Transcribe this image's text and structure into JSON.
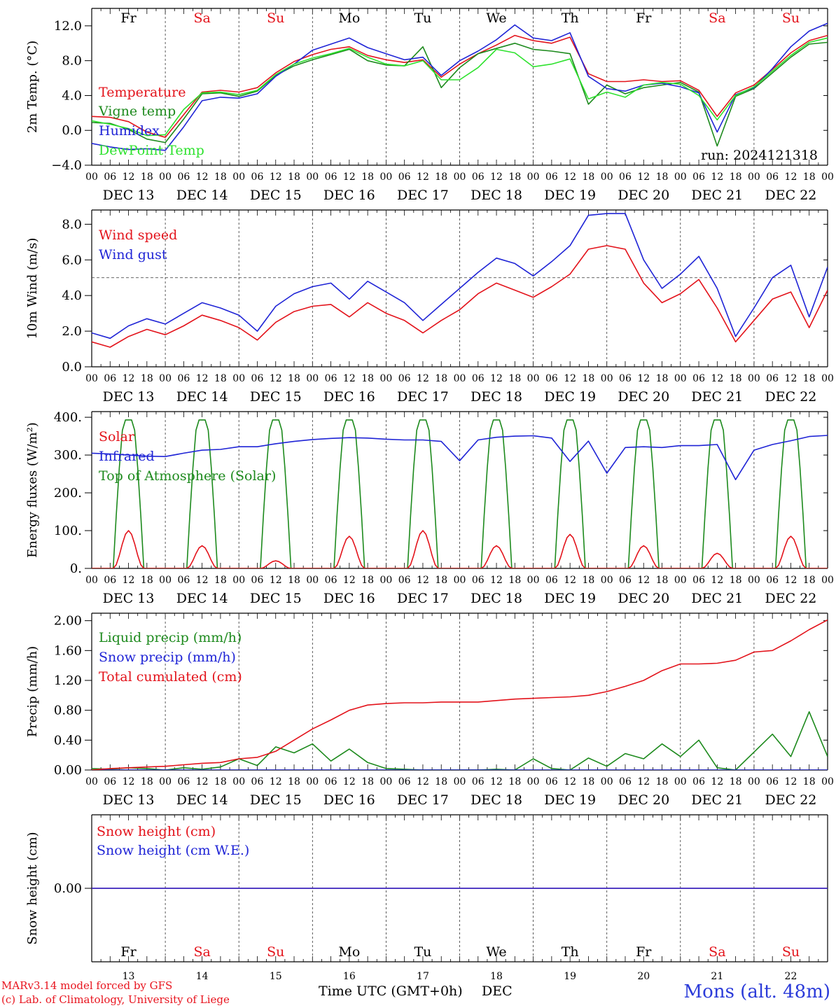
{
  "colors": {
    "red": "#e3131b",
    "blue": "#1f24d6",
    "green": "#1d8a1d",
    "lightgreen": "#2ee22e",
    "axis": "#000000"
  },
  "days": {
    "names": [
      "Fr",
      "Sa",
      "Su",
      "Mo",
      "Tu",
      "We",
      "Th",
      "Fr",
      "Sa",
      "Su"
    ],
    "weekend": [
      false,
      true,
      true,
      false,
      false,
      false,
      false,
      false,
      true,
      true
    ],
    "dates": [
      "DEC 13",
      "DEC 14",
      "DEC 15",
      "DEC 16",
      "DEC 17",
      "DEC 18",
      "DEC 19",
      "DEC 20",
      "DEC 21",
      "DEC 22"
    ],
    "numbers": [
      "13",
      "14",
      "15",
      "16",
      "17",
      "18",
      "19",
      "20",
      "21",
      "22"
    ],
    "hour_labels": [
      "00",
      "06",
      "12",
      "18"
    ],
    "last_hour_label": "00"
  },
  "footer": {
    "model": "MARv3.14 model forced by GFS",
    "credit": "(c) Lab. of Climatology, University of Liege",
    "xlabel": "Time UTC (GMT+0h)",
    "month": "DEC",
    "station": "Mons (alt. 48m)"
  },
  "chart_data": [
    {
      "type": "line",
      "ylabel": "2m Temp. (°C)",
      "ylim": [
        -4,
        14
      ],
      "yticks": [
        "12.0",
        "8.0",
        "4.0",
        "0.0",
        "−4.0"
      ],
      "ytick_values": [
        12,
        8,
        4,
        0,
        -4
      ],
      "annotation": "run: 2024121318",
      "x_unit": "hours from DEC 13 00 UTC",
      "series": [
        {
          "name": "Temperature",
          "color": "red",
          "x": [
            0,
            6,
            12,
            18,
            24,
            30,
            36,
            42,
            48,
            54,
            60,
            66,
            72,
            78,
            84,
            90,
            96,
            102,
            108,
            114,
            120,
            126,
            132,
            138,
            144,
            150,
            156,
            162,
            168,
            174,
            180,
            186,
            192,
            198,
            204,
            210,
            216,
            222,
            228,
            234,
            240
          ],
          "y": [
            1.6,
            1.5,
            1.0,
            -0.2,
            -0.8,
            1.8,
            4.4,
            4.6,
            4.4,
            4.9,
            6.6,
            7.9,
            8.7,
            9.3,
            9.6,
            8.6,
            8.1,
            7.8,
            8.1,
            6.1,
            7.6,
            8.8,
            9.8,
            10.9,
            10.3,
            10.0,
            10.7,
            6.5,
            5.6,
            5.6,
            5.8,
            5.6,
            5.7,
            4.6,
            1.6,
            4.3,
            5.2,
            7.0,
            8.9,
            10.3,
            10.9
          ]
        },
        {
          "name": "Vigne temp",
          "color": "green",
          "x": [
            0,
            6,
            12,
            18,
            24,
            30,
            36,
            42,
            48,
            54,
            60,
            66,
            72,
            78,
            84,
            90,
            96,
            102,
            108,
            114,
            120,
            126,
            132,
            138,
            144,
            150,
            156,
            162,
            168,
            174,
            180,
            186,
            192,
            198,
            204,
            210,
            216,
            222,
            228,
            234,
            240
          ],
          "y": [
            0.9,
            0.8,
            0.1,
            -1.0,
            -1.4,
            1.3,
            4.2,
            4.3,
            3.9,
            4.5,
            6.3,
            7.4,
            8.1,
            8.7,
            9.3,
            8.0,
            7.5,
            7.4,
            9.6,
            4.9,
            7.2,
            8.8,
            9.4,
            10.0,
            9.3,
            9.1,
            8.8,
            3.0,
            5.2,
            4.2,
            4.9,
            5.2,
            5.5,
            4.4,
            -1.8,
            3.9,
            4.8,
            6.6,
            8.4,
            9.9,
            10.1
          ]
        },
        {
          "name": "Humidex",
          "color": "blue",
          "x": [
            0,
            6,
            12,
            18,
            24,
            30,
            36,
            42,
            48,
            54,
            60,
            66,
            72,
            78,
            84,
            90,
            96,
            102,
            108,
            114,
            120,
            126,
            132,
            138,
            144,
            150,
            156,
            162,
            168,
            174,
            180,
            186,
            192,
            198,
            204,
            210,
            216,
            222,
            228,
            234,
            240
          ],
          "y": [
            -1.5,
            -1.9,
            -2.2,
            -2.1,
            -2.3,
            0.4,
            3.4,
            3.8,
            3.7,
            4.2,
            6.2,
            7.6,
            9.2,
            9.9,
            10.6,
            9.5,
            8.8,
            8.1,
            8.4,
            6.3,
            8.0,
            9.1,
            10.4,
            12.1,
            10.6,
            10.3,
            11.2,
            6.2,
            4.8,
            4.5,
            5.2,
            5.4,
            5.0,
            4.3,
            -0.2,
            4.1,
            4.9,
            7.1,
            9.6,
            11.4,
            12.3
          ]
        },
        {
          "name": "DewPoint Temp",
          "color": "lightgreen",
          "x": [
            0,
            6,
            12,
            18,
            24,
            30,
            36,
            42,
            48,
            54,
            60,
            66,
            72,
            78,
            84,
            90,
            96,
            102,
            108,
            114,
            120,
            126,
            132,
            138,
            144,
            150,
            156,
            162,
            168,
            174,
            180,
            186,
            192,
            198,
            204,
            210,
            216,
            222,
            228,
            234,
            240
          ],
          "y": [
            1.1,
            0.7,
            0.2,
            -0.6,
            -0.5,
            2.4,
            4.3,
            4.4,
            4.1,
            4.6,
            6.4,
            7.6,
            8.3,
            8.8,
            9.4,
            8.4,
            7.6,
            7.4,
            8.0,
            5.8,
            5.8,
            7.2,
            9.3,
            8.9,
            7.3,
            7.6,
            8.2,
            3.6,
            4.4,
            3.8,
            5.2,
            5.5,
            5.3,
            4.0,
            1.2,
            4.0,
            5.0,
            6.8,
            8.6,
            10.1,
            10.6
          ]
        }
      ]
    },
    {
      "type": "line",
      "ylabel": "10m Wind (m/s)",
      "ylim": [
        0,
        8.8
      ],
      "yticks": [
        "8.0",
        "6.0",
        "4.0",
        "2.0",
        "0.0"
      ],
      "ytick_values": [
        8,
        6,
        4,
        2,
        0
      ],
      "reference_line": 5,
      "x_unit": "hours from DEC 13 00 UTC",
      "series": [
        {
          "name": "Wind speed",
          "color": "red",
          "x": [
            0,
            6,
            12,
            18,
            24,
            30,
            36,
            42,
            48,
            54,
            60,
            66,
            72,
            78,
            84,
            90,
            96,
            102,
            108,
            114,
            120,
            126,
            132,
            138,
            144,
            150,
            156,
            162,
            168,
            174,
            180,
            186,
            192,
            198,
            204,
            210,
            216,
            222,
            228,
            234,
            240
          ],
          "y": [
            1.4,
            1.1,
            1.7,
            2.1,
            1.8,
            2.3,
            2.9,
            2.6,
            2.2,
            1.5,
            2.5,
            3.1,
            3.4,
            3.5,
            2.8,
            3.6,
            3.0,
            2.6,
            1.9,
            2.6,
            3.2,
            4.1,
            4.7,
            4.3,
            3.9,
            4.5,
            5.2,
            6.6,
            6.8,
            6.6,
            4.7,
            3.6,
            4.1,
            4.9,
            3.3,
            1.4,
            2.6,
            3.8,
            4.2,
            2.2,
            4.3
          ]
        },
        {
          "name": "Wind gust",
          "color": "blue",
          "x": [
            0,
            6,
            12,
            18,
            24,
            30,
            36,
            42,
            48,
            54,
            60,
            66,
            72,
            78,
            84,
            90,
            96,
            102,
            108,
            114,
            120,
            126,
            132,
            138,
            144,
            150,
            156,
            162,
            168,
            174,
            180,
            186,
            192,
            198,
            204,
            210,
            216,
            222,
            228,
            234,
            240
          ],
          "y": [
            1.9,
            1.6,
            2.3,
            2.7,
            2.4,
            3.0,
            3.6,
            3.3,
            2.9,
            2.0,
            3.4,
            4.1,
            4.5,
            4.7,
            3.8,
            4.8,
            4.2,
            3.6,
            2.6,
            3.5,
            4.4,
            5.3,
            6.1,
            5.8,
            5.1,
            5.9,
            6.8,
            8.5,
            8.6,
            8.6,
            6.0,
            4.4,
            5.2,
            6.2,
            4.4,
            1.7,
            3.3,
            5.0,
            5.7,
            2.8,
            5.6
          ]
        }
      ]
    },
    {
      "type": "line",
      "ylabel": "Energy fluxes (W/m²)",
      "ylim": [
        0,
        415
      ],
      "yticks": [
        "400.",
        "300.",
        "200.",
        "100.",
        "0."
      ],
      "ytick_values": [
        400,
        300,
        200,
        100,
        0
      ],
      "x_unit": "hours from DEC 13 00 UTC",
      "solar_peaks": [
        100,
        60,
        20,
        85,
        100,
        60,
        90,
        60,
        40,
        85
      ],
      "toa_peak": 393,
      "series": [
        {
          "name": "Solar",
          "color": "red"
        },
        {
          "name": "Infrared",
          "color": "blue",
          "x": [
            0,
            6,
            12,
            18,
            24,
            30,
            36,
            42,
            48,
            54,
            60,
            66,
            72,
            78,
            84,
            90,
            96,
            102,
            108,
            114,
            120,
            126,
            132,
            138,
            144,
            150,
            156,
            162,
            168,
            174,
            180,
            186,
            192,
            198,
            204,
            210,
            216,
            222,
            228,
            234,
            240
          ],
          "y": [
            305,
            303,
            300,
            297,
            296,
            305,
            313,
            315,
            322,
            322,
            330,
            336,
            341,
            344,
            346,
            345,
            342,
            340,
            340,
            336,
            285,
            340,
            347,
            350,
            351,
            345,
            283,
            337,
            252,
            320,
            322,
            320,
            325,
            325,
            328,
            235,
            313,
            328,
            338,
            349,
            352
          ]
        },
        {
          "name": "Top of Atmosphere (Solar)",
          "color": "green"
        }
      ]
    },
    {
      "type": "line",
      "ylabel": "Precip (mm/h)",
      "ylim": [
        0,
        2.1
      ],
      "yticks": [
        "2.00",
        "1.60",
        "1.20",
        "0.80",
        "0.40",
        "0.00"
      ],
      "ytick_values": [
        2.0,
        1.6,
        1.2,
        0.8,
        0.4,
        0.0
      ],
      "x_unit": "hours from DEC 13 00 UTC",
      "series": [
        {
          "name": "Liquid precip (mm/h)",
          "color": "green",
          "x": [
            0,
            6,
            12,
            18,
            24,
            30,
            36,
            42,
            48,
            54,
            60,
            66,
            72,
            78,
            84,
            90,
            96,
            102,
            108,
            114,
            120,
            126,
            132,
            138,
            144,
            150,
            156,
            162,
            168,
            174,
            180,
            186,
            192,
            198,
            204,
            210,
            216,
            222,
            228,
            234,
            240
          ],
          "y": [
            0.02,
            0.01,
            0.03,
            0.02,
            0.0,
            0.03,
            0.01,
            0.04,
            0.15,
            0.06,
            0.31,
            0.23,
            0.35,
            0.12,
            0.28,
            0.1,
            0.02,
            0.01,
            0.0,
            0.0,
            0.0,
            0.0,
            0.01,
            0.0,
            0.15,
            0.02,
            0.0,
            0.16,
            0.05,
            0.22,
            0.15,
            0.35,
            0.18,
            0.4,
            0.03,
            0.0,
            0.24,
            0.48,
            0.18,
            0.78,
            0.18
          ]
        },
        {
          "name": "Snow precip (mm/h)",
          "color": "blue",
          "x": [
            0,
            240
          ],
          "y": [
            0,
            0
          ]
        },
        {
          "name": "Total cumulated (cm)",
          "color": "red",
          "x": [
            0,
            6,
            12,
            18,
            24,
            30,
            36,
            42,
            48,
            54,
            60,
            66,
            72,
            78,
            84,
            90,
            96,
            102,
            108,
            114,
            120,
            126,
            132,
            138,
            144,
            150,
            156,
            162,
            168,
            174,
            180,
            186,
            192,
            198,
            204,
            210,
            216,
            222,
            228,
            234,
            240
          ],
          "y": [
            0.0,
            0.02,
            0.03,
            0.04,
            0.05,
            0.07,
            0.09,
            0.1,
            0.15,
            0.17,
            0.25,
            0.4,
            0.55,
            0.67,
            0.8,
            0.87,
            0.89,
            0.9,
            0.9,
            0.91,
            0.91,
            0.91,
            0.93,
            0.95,
            0.96,
            0.97,
            0.98,
            1.0,
            1.05,
            1.12,
            1.2,
            1.33,
            1.42,
            1.42,
            1.43,
            1.47,
            1.58,
            1.6,
            1.73,
            1.88,
            2.01
          ]
        }
      ]
    },
    {
      "type": "line",
      "ylabel": "Snow height (cm)",
      "ylim": [
        -1,
        1
      ],
      "yticks": [
        "0.00"
      ],
      "ytick_values": [
        0
      ],
      "x_unit": "hours from DEC 13 00 UTC",
      "series": [
        {
          "name": "Snow height (cm)",
          "color": "red",
          "x": [
            0,
            240
          ],
          "y": [
            0,
            0
          ]
        },
        {
          "name": "Snow height (cm W.E.)",
          "color": "blue",
          "x": [
            0,
            240
          ],
          "y": [
            0,
            0
          ]
        }
      ]
    }
  ]
}
